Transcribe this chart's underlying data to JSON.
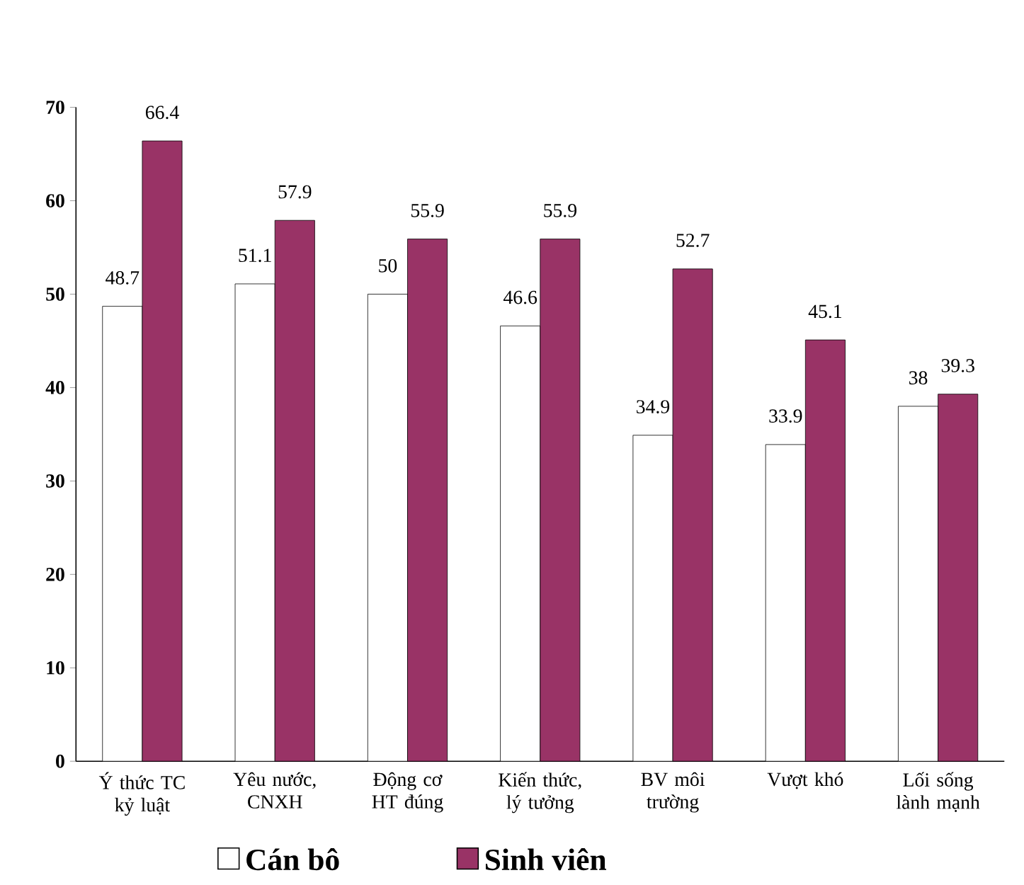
{
  "chart_data": {
    "type": "bar",
    "categories": [
      "Ý thức TC kỷ luật",
      "Yêu nước, CNXH",
      "Động cơ HT đúng",
      "Kiến thức, lý tưởng",
      "BV môi trường",
      "Vượt khó",
      "Lối sống lành mạnh"
    ],
    "series": [
      {
        "name": "Cán bô",
        "color": "#ffffff",
        "values": [
          48.7,
          51.1,
          50,
          46.6,
          34.9,
          33.9,
          38
        ]
      },
      {
        "name": "Sinh viên",
        "color": "#993366",
        "values": [
          66.4,
          57.9,
          55.9,
          55.9,
          52.7,
          45.1,
          39.3
        ]
      }
    ],
    "ylim": [
      0,
      70
    ],
    "yticks": [
      0,
      10,
      20,
      30,
      40,
      50,
      60,
      70
    ],
    "data_labels": true,
    "legend": "bottom",
    "grid": false
  }
}
